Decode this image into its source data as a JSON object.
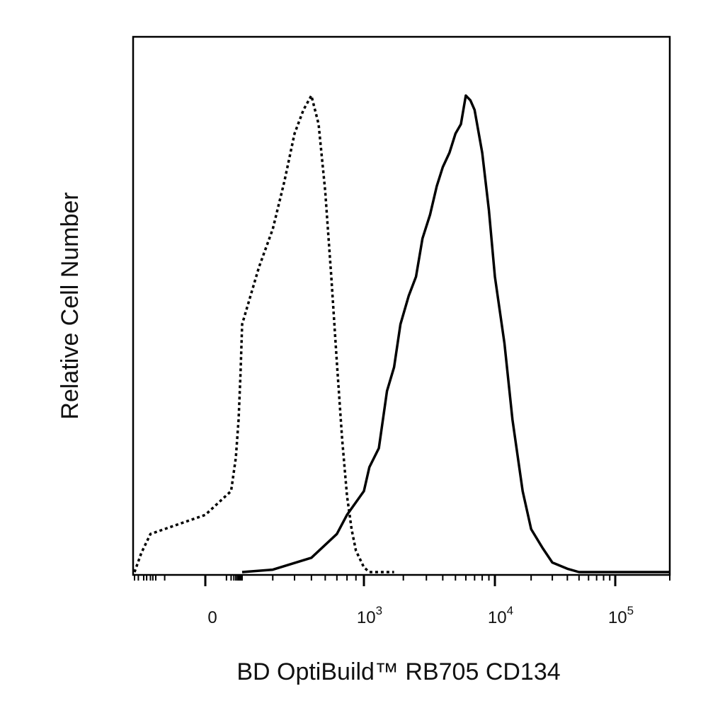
{
  "chart_data": {
    "type": "line",
    "title": "",
    "xlabel": "BD OptiBuild™ RB705 CD134",
    "ylabel": "Relative Cell Number",
    "x_scale": "biexponential",
    "x_range": [
      -200,
      200000
    ],
    "y_range": [
      0,
      1
    ],
    "grid": false,
    "legend": "none",
    "x_tick_labels": [
      {
        "value": 0,
        "base": "0",
        "exp": ""
      },
      {
        "value": 1000,
        "base": "10",
        "exp": "3"
      },
      {
        "value": 10000,
        "base": "10",
        "exp": "4"
      },
      {
        "value": 100000,
        "base": "10",
        "exp": "5"
      }
    ],
    "colors": {
      "line": "#000000",
      "axis": "#000000",
      "text": "#111111"
    },
    "series": [
      {
        "style": "dotted",
        "x": [
          -200,
          -120,
          -60,
          0,
          40,
          80,
          120,
          160,
          200,
          250,
          300,
          350,
          400,
          450,
          500,
          550,
          600,
          650,
          700,
          750,
          800,
          850,
          900,
          1000,
          1100,
          1200,
          1400,
          1700
        ],
        "y": [
          0.0,
          0.04,
          0.08,
          0.12,
          0.17,
          0.24,
          0.32,
          0.42,
          0.52,
          0.64,
          0.72,
          0.82,
          0.92,
          0.97,
          1.0,
          0.94,
          0.8,
          0.62,
          0.44,
          0.28,
          0.16,
          0.09,
          0.045,
          0.01,
          0.0,
          0.0,
          0.0,
          0.0
        ]
      },
      {
        "style": "solid",
        "x": [
          200,
          300,
          500,
          700,
          800,
          1000,
          1100,
          1300,
          1500,
          1700,
          1900,
          2200,
          2500,
          2800,
          3200,
          3600,
          4000,
          4500,
          5000,
          5500,
          6000,
          6500,
          7000,
          8000,
          9000,
          10000,
          12000,
          14000,
          17000,
          20000,
          25000,
          30000,
          40000,
          50000,
          70000,
          100000,
          200000
        ],
        "y": [
          0.0,
          0.005,
          0.03,
          0.08,
          0.12,
          0.17,
          0.22,
          0.26,
          0.38,
          0.43,
          0.52,
          0.58,
          0.62,
          0.7,
          0.75,
          0.81,
          0.85,
          0.88,
          0.92,
          0.94,
          1.0,
          0.99,
          0.97,
          0.88,
          0.76,
          0.62,
          0.48,
          0.32,
          0.17,
          0.09,
          0.05,
          0.02,
          0.007,
          0.0,
          0.0,
          0.0,
          0.0
        ]
      }
    ]
  }
}
